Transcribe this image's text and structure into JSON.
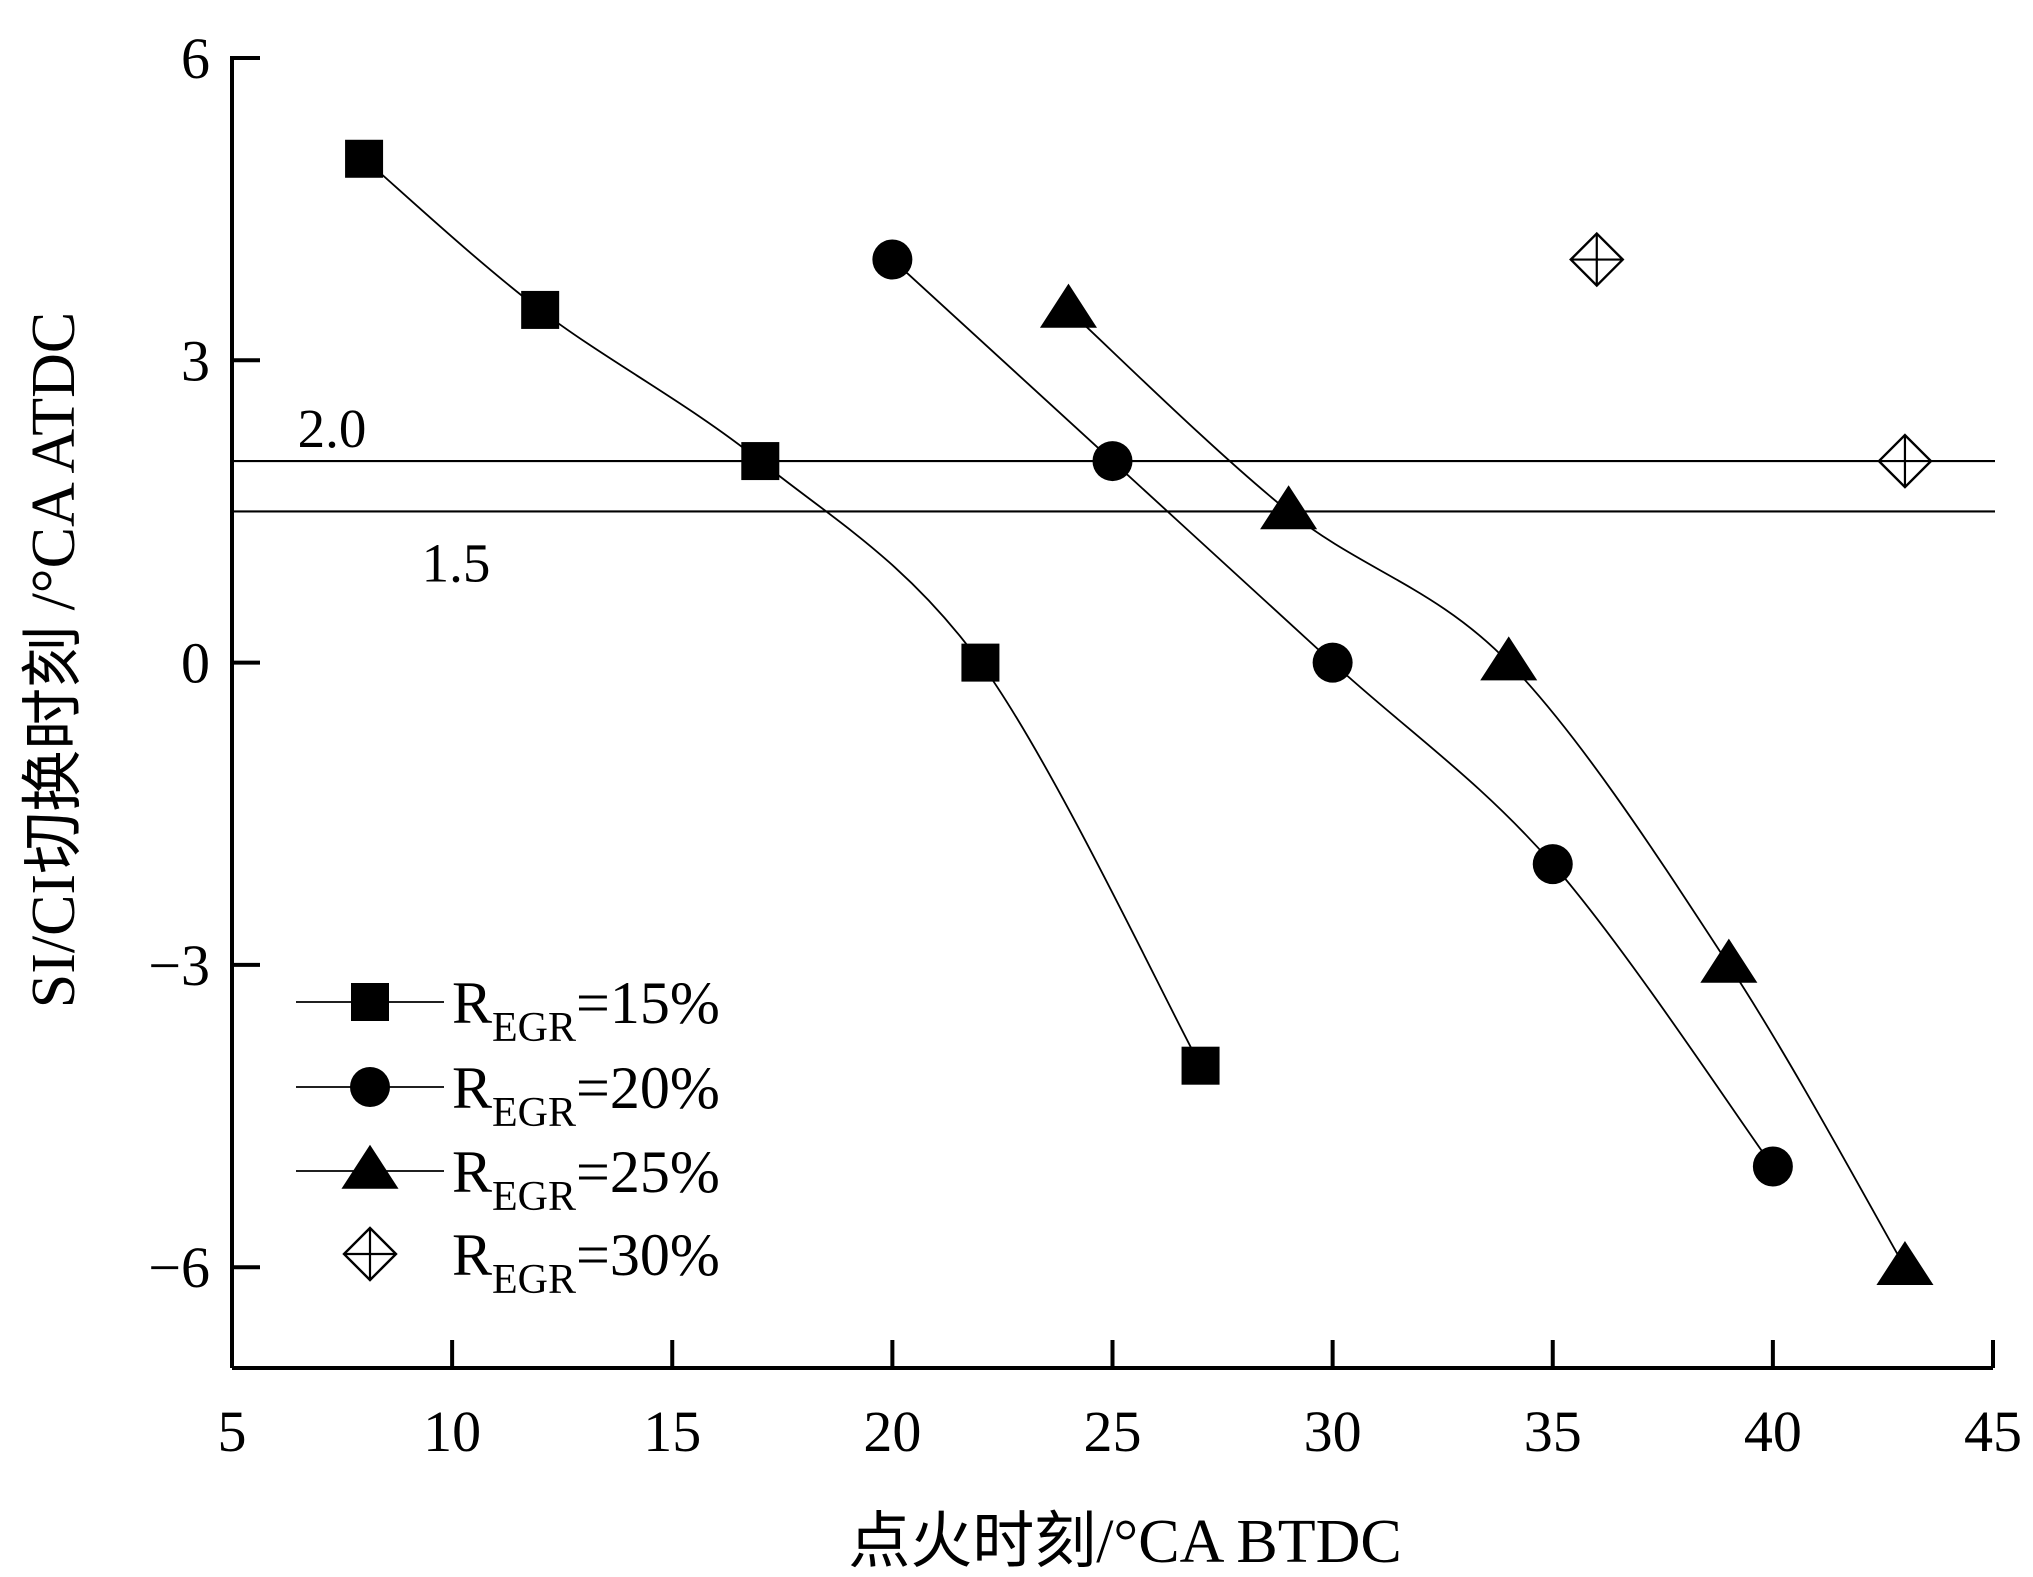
{
  "chart_data": {
    "type": "scatter",
    "xlabel": "点火时刻/°CA BTDC",
    "ylabel": "SI/CI切换时刻 /°CA ATDC",
    "xlim": [
      5,
      45
    ],
    "ylim": [
      -7,
      6
    ],
    "x_ticks": [
      "5",
      "10",
      "15",
      "20",
      "25",
      "30",
      "35",
      "40",
      "45"
    ],
    "y_ticks": [
      "6",
      "3",
      "0",
      "−3",
      "−6"
    ],
    "grid": false,
    "legend_position": "bottom-left",
    "reference_lines": [
      {
        "y": 2.0,
        "label": "2.0"
      },
      {
        "y": 1.5,
        "label": "1.5"
      }
    ],
    "series": [
      {
        "name_main": "R",
        "name_sub": "EGR",
        "name_suffix": "=15%",
        "marker": "square",
        "connected": true,
        "points": [
          {
            "x": 8,
            "y": 5
          },
          {
            "x": 12,
            "y": 3.5
          },
          {
            "x": 17,
            "y": 2
          },
          {
            "x": 22,
            "y": 0
          },
          {
            "x": 27,
            "y": -4
          }
        ]
      },
      {
        "name_main": "R",
        "name_sub": "EGR",
        "name_suffix": "=20%",
        "marker": "circle",
        "connected": true,
        "points": [
          {
            "x": 20,
            "y": 4
          },
          {
            "x": 25,
            "y": 2
          },
          {
            "x": 30,
            "y": 0
          },
          {
            "x": 35,
            "y": -2
          },
          {
            "x": 40,
            "y": -5
          }
        ]
      },
      {
        "name_main": "R",
        "name_sub": "EGR",
        "name_suffix": "=25%",
        "marker": "triangle",
        "connected": true,
        "points": [
          {
            "x": 24,
            "y": 3.5
          },
          {
            "x": 29,
            "y": 1.5
          },
          {
            "x": 34,
            "y": 0
          },
          {
            "x": 39,
            "y": -3
          },
          {
            "x": 43,
            "y": -6
          }
        ]
      },
      {
        "name_main": "R",
        "name_sub": "EGR",
        "name_suffix": "=30%",
        "marker": "diamond-cross",
        "connected": false,
        "points": [
          {
            "x": 36,
            "y": 4
          },
          {
            "x": 43,
            "y": 2
          }
        ]
      }
    ]
  }
}
